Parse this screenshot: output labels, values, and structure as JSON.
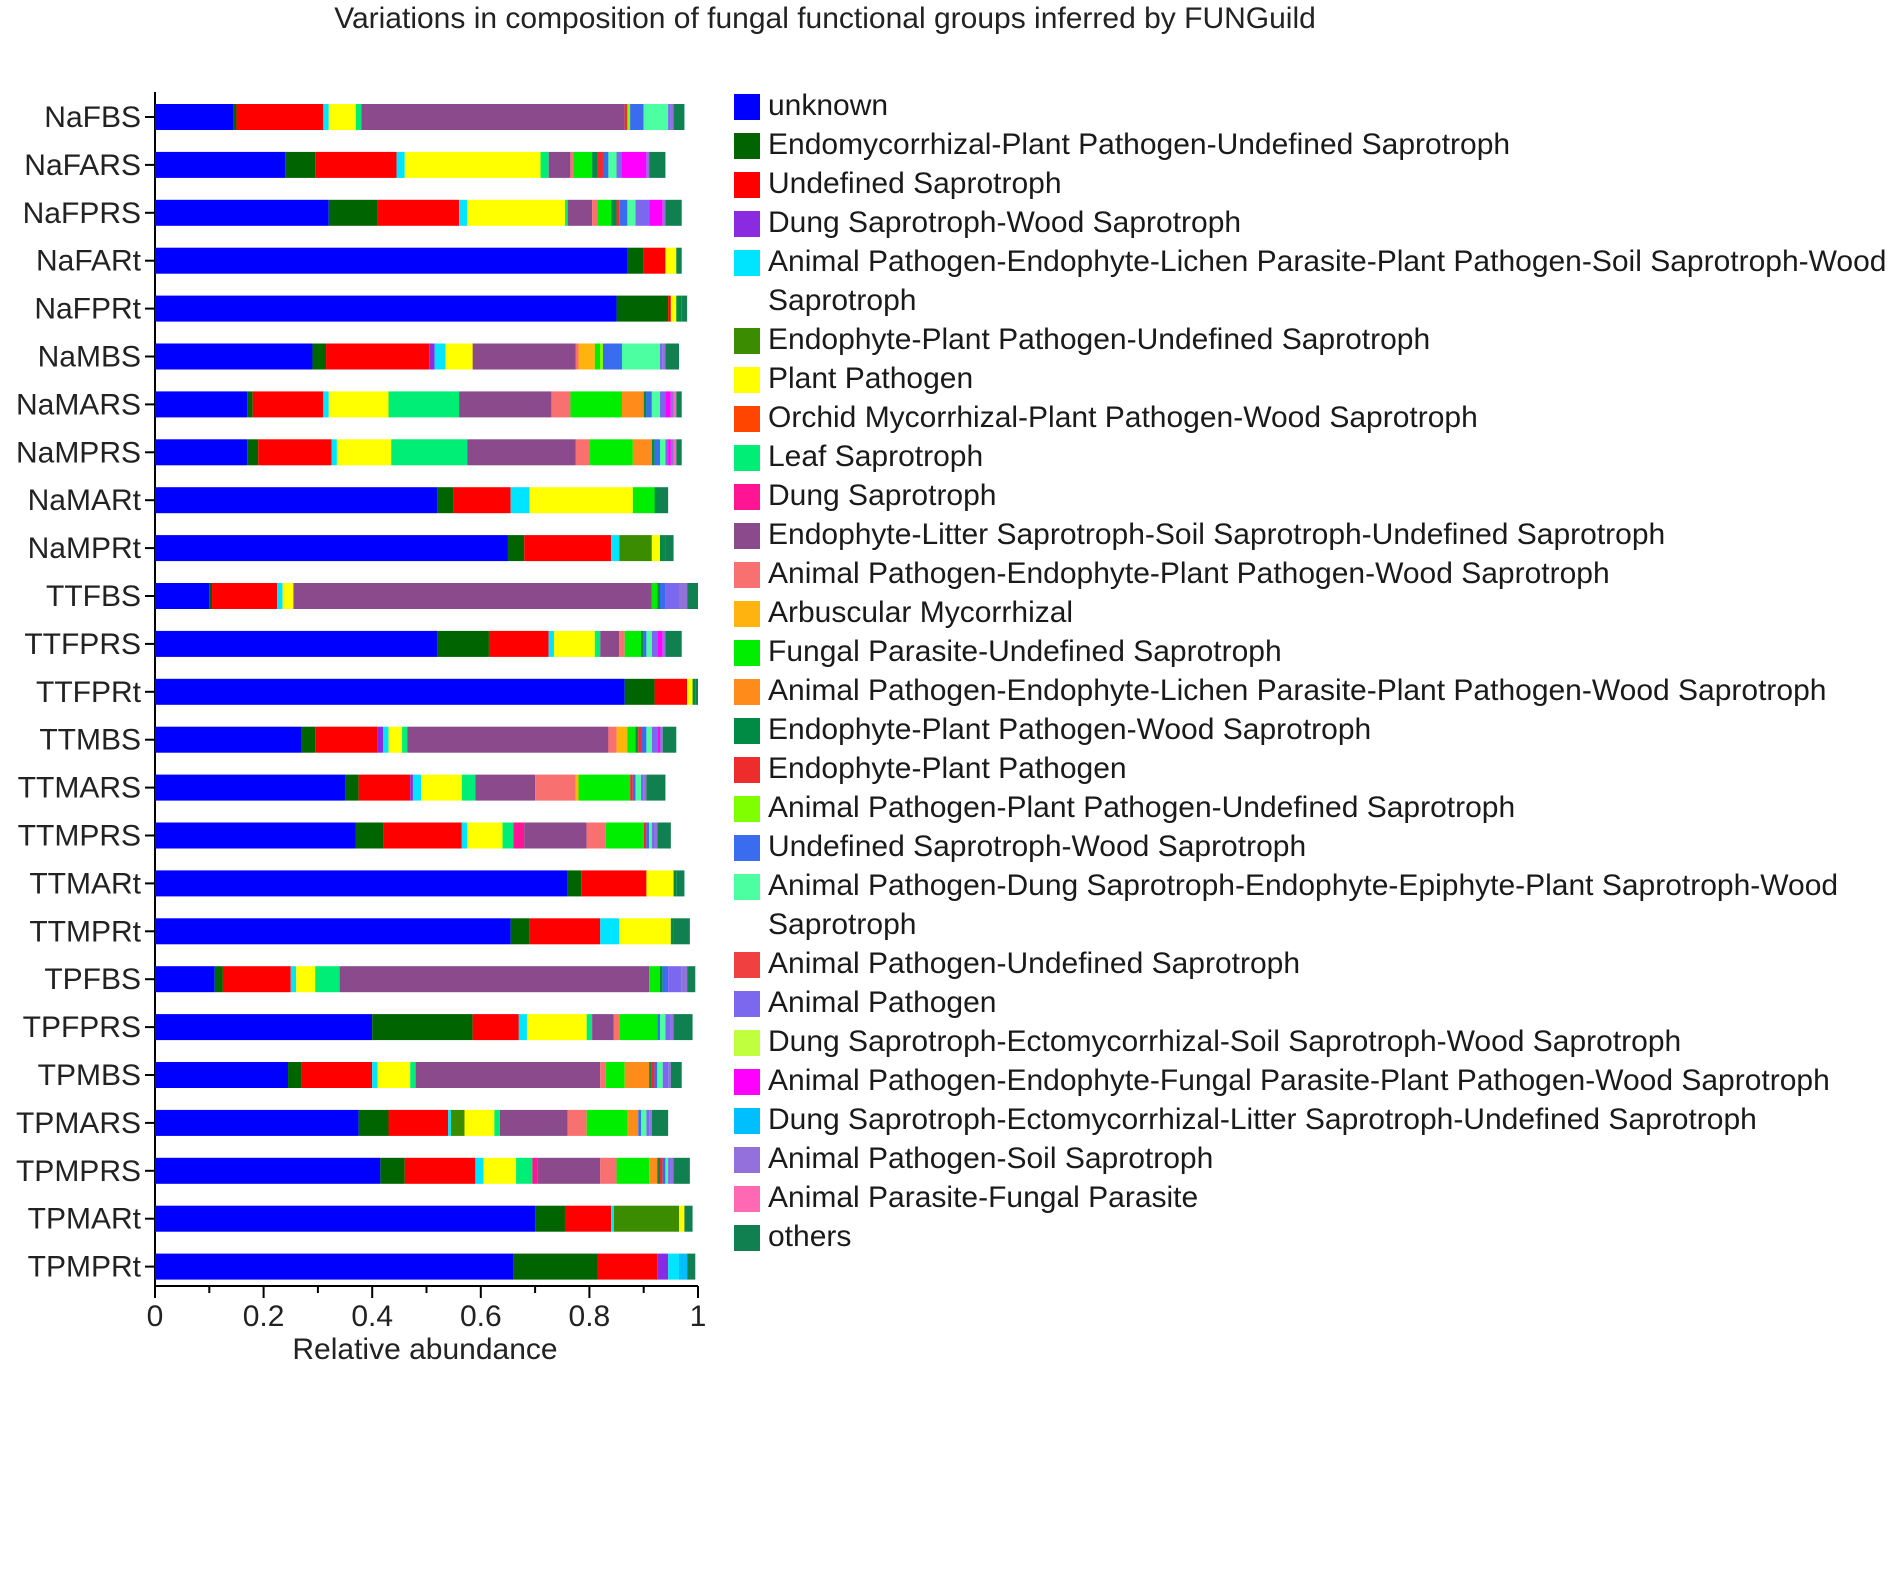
{
  "chart_data": {
    "type": "bar",
    "orientation": "horizontal",
    "stacked": true,
    "title": "Variations in composition of fungal functional groups inferred by FUNGuild",
    "xlabel": "Relative abundance",
    "ylabel": "",
    "xlim": [
      0,
      1
    ],
    "xticks": [
      "0",
      "0.2",
      "0.4",
      "0.6",
      "0.8",
      "1"
    ],
    "legend_position": "right",
    "categories": [
      "NaFBS",
      "NaFARS",
      "NaFPRS",
      "NaFARt",
      "NaFPRt",
      "NaMBS",
      "NaMARS",
      "NaMPRS",
      "NaMARt",
      "NaMPRt",
      "TTFBS",
      "TTFPRS",
      "TTFPRt",
      "TTMBS",
      "TTMARS",
      "TTMPRS",
      "TTMARt",
      "TTMPRt",
      "TPFBS",
      "TPFPRS",
      "TPMBS",
      "TPMARS",
      "TPMPRS",
      "TPMARt",
      "TPMPRt"
    ],
    "series": [
      {
        "name": "unknown",
        "color": "#0000FF",
        "values": [
          0.145,
          0.24,
          0.32,
          0.87,
          0.85,
          0.29,
          0.17,
          0.17,
          0.52,
          0.65,
          0.1,
          0.52,
          0.865,
          0.27,
          0.35,
          0.37,
          0.76,
          0.655,
          0.11,
          0.4,
          0.245,
          0.375,
          0.415,
          0.7,
          0.66
        ]
      },
      {
        "name": "Endomycorrhizal-Plant Pathogen-Undefined Saprotroph",
        "color": "#006400",
        "values": [
          0.005,
          0.055,
          0.09,
          0.03,
          0.095,
          0.025,
          0.01,
          0.02,
          0.03,
          0.03,
          0.005,
          0.095,
          0.055,
          0.025,
          0.025,
          0.05,
          0.025,
          0.035,
          0.015,
          0.185,
          0.025,
          0.055,
          0.045,
          0.055,
          0.155
        ]
      },
      {
        "name": "Undefined Saprotroph",
        "color": "#FF0000",
        "values": [
          0.16,
          0.15,
          0.15,
          0.04,
          0.005,
          0.19,
          0.13,
          0.135,
          0.105,
          0.16,
          0.12,
          0.11,
          0.06,
          0.115,
          0.095,
          0.145,
          0.12,
          0.13,
          0.125,
          0.085,
          0.13,
          0.11,
          0.13,
          0.085,
          0.11
        ]
      },
      {
        "name": "Dung Saprotroph-Wood Saprotroph",
        "color": "#8A2BE2",
        "values": [
          0,
          0,
          0,
          0,
          0,
          0.01,
          0,
          0,
          0,
          0,
          0,
          0,
          0,
          0.01,
          0.005,
          0,
          0,
          0,
          0,
          0,
          0,
          0,
          0,
          0,
          0.02
        ]
      },
      {
        "name": "Animal Pathogen-Endophyte-Lichen Parasite-Plant Pathogen-Soil Saprotroph-Wood Saprotroph",
        "color": "#00E5FF",
        "values": [
          0.01,
          0.015,
          0.015,
          0,
          0,
          0.02,
          0.01,
          0.01,
          0.035,
          0.015,
          0.01,
          0.01,
          0,
          0.01,
          0.015,
          0.01,
          0,
          0.035,
          0.01,
          0.015,
          0.01,
          0.005,
          0.015,
          0.005,
          0.02
        ]
      },
      {
        "name": "Endophyte-Plant Pathogen-Undefined Saprotroph",
        "color": "#3C8C00",
        "values": [
          0,
          0,
          0,
          0,
          0,
          0,
          0,
          0,
          0,
          0.06,
          0,
          0,
          0,
          0,
          0,
          0,
          0,
          0,
          0,
          0,
          0,
          0.025,
          0,
          0.12,
          0
        ]
      },
      {
        "name": "Plant Pathogen",
        "color": "#FFFF00",
        "values": [
          0.05,
          0.25,
          0.18,
          0.02,
          0.01,
          0.05,
          0.11,
          0.1,
          0.19,
          0.015,
          0.02,
          0.075,
          0.01,
          0.025,
          0.075,
          0.065,
          0.05,
          0.095,
          0.035,
          0.11,
          0.06,
          0.055,
          0.06,
          0.01,
          0
        ]
      },
      {
        "name": "Orchid Mycorrhizal-Plant Pathogen-Wood Saprotroph",
        "color": "#FF4500",
        "values": [
          0,
          0,
          0,
          0,
          0,
          0,
          0,
          0,
          0,
          0,
          0,
          0,
          0,
          0,
          0,
          0,
          0,
          0,
          0,
          0,
          0,
          0,
          0,
          0,
          0
        ]
      },
      {
        "name": "Leaf Saprotroph",
        "color": "#00EE76",
        "values": [
          0.01,
          0.015,
          0.005,
          0,
          0,
          0,
          0.13,
          0.14,
          0,
          0,
          0,
          0.01,
          0,
          0.01,
          0.025,
          0.02,
          0,
          0,
          0.045,
          0.01,
          0.01,
          0.01,
          0.03,
          0,
          0
        ]
      },
      {
        "name": "Dung Saprotroph",
        "color": "#FF1493",
        "values": [
          0,
          0,
          0,
          0,
          0,
          0,
          0,
          0,
          0,
          0,
          0,
          0,
          0,
          0,
          0,
          0.02,
          0,
          0,
          0,
          0,
          0,
          0,
          0.01,
          0,
          0
        ]
      },
      {
        "name": "Endophyte-Litter Saprotroph-Soil Saprotroph-Undefined Saprotroph",
        "color": "#8B4A8B",
        "values": [
          0.485,
          0.04,
          0.045,
          0,
          0,
          0.19,
          0.17,
          0.2,
          0,
          0,
          0.66,
          0.035,
          0,
          0.37,
          0.11,
          0.115,
          0,
          0,
          0.57,
          0.04,
          0.34,
          0.125,
          0.115,
          0,
          0
        ]
      },
      {
        "name": "Animal Pathogen-Endophyte-Plant Pathogen-Wood Saprotroph",
        "color": "#F87070",
        "values": [
          0,
          0.005,
          0.01,
          0,
          0,
          0.005,
          0.035,
          0.025,
          0,
          0,
          0,
          0.01,
          0,
          0.015,
          0.075,
          0.035,
          0,
          0,
          0,
          0.01,
          0.01,
          0.035,
          0.03,
          0,
          0
        ]
      },
      {
        "name": "Arbuscular Mycorrhizal",
        "color": "#FFB30F",
        "values": [
          0,
          0,
          0,
          0,
          0,
          0.03,
          0,
          0,
          0,
          0,
          0,
          0,
          0,
          0.02,
          0.005,
          0,
          0,
          0,
          0,
          0,
          0,
          0,
          0,
          0,
          0
        ]
      },
      {
        "name": "Fungal Parasite-Undefined Saprotroph",
        "color": "#00EE00",
        "values": [
          0,
          0.035,
          0.025,
          0,
          0,
          0.01,
          0.095,
          0.08,
          0.04,
          0,
          0.01,
          0.03,
          0,
          0.015,
          0.095,
          0.07,
          0,
          0,
          0.02,
          0.07,
          0.035,
          0.075,
          0.06,
          0,
          0
        ]
      },
      {
        "name": "Animal Pathogen-Endophyte-Lichen Parasite-Plant Pathogen-Wood Saprotroph",
        "color": "#FF8C1A",
        "values": [
          0,
          0,
          0,
          0,
          0,
          0,
          0.04,
          0.035,
          0,
          0,
          0,
          0,
          0,
          0,
          0,
          0,
          0,
          0,
          0,
          0,
          0.045,
          0.02,
          0.015,
          0,
          0
        ]
      },
      {
        "name": "Endophyte-Plant Pathogen-Wood Saprotroph",
        "color": "#008B45",
        "values": [
          0,
          0.01,
          0.01,
          0,
          0.01,
          0,
          0.005,
          0.005,
          0.01,
          0.01,
          0.005,
          0.005,
          0.005,
          0.005,
          0,
          0,
          0.005,
          0.005,
          0.005,
          0,
          0.005,
          0,
          0.005,
          0,
          0
        ]
      },
      {
        "name": "Endophyte-Plant Pathogen",
        "color": "#EE2C2C",
        "values": [
          0.005,
          0.01,
          0.005,
          0,
          0,
          0,
          0,
          0,
          0,
          0,
          0,
          0,
          0,
          0.005,
          0.005,
          0.005,
          0,
          0,
          0,
          0,
          0.005,
          0,
          0.005,
          0,
          0
        ]
      },
      {
        "name": "Animal Pathogen-Plant Pathogen-Undefined Saprotroph",
        "color": "#7FFF00",
        "values": [
          0.005,
          0,
          0,
          0,
          0,
          0.005,
          0,
          0,
          0,
          0,
          0,
          0,
          0,
          0,
          0,
          0,
          0,
          0,
          0,
          0,
          0,
          0,
          0,
          0,
          0
        ]
      },
      {
        "name": "Undefined Saprotroph-Wood Saprotroph",
        "color": "#3A6CF0",
        "values": [
          0.025,
          0.01,
          0.015,
          0,
          0,
          0.035,
          0.01,
          0.01,
          0,
          0,
          0.01,
          0.005,
          0,
          0.01,
          0.005,
          0.005,
          0,
          0,
          0.01,
          0.005,
          0.005,
          0.005,
          0.005,
          0,
          0
        ]
      },
      {
        "name": "Animal Pathogen-Dung Saprotroph-Endophyte-Epiphyte-Plant Saprotroph-Wood Saprotroph",
        "color": "#4CFFA0",
        "values": [
          0.045,
          0.015,
          0.015,
          0,
          0,
          0.07,
          0.015,
          0.01,
          0,
          0,
          0,
          0.01,
          0,
          0.01,
          0.01,
          0.005,
          0,
          0,
          0,
          0.01,
          0.01,
          0.01,
          0.005,
          0,
          0
        ]
      },
      {
        "name": "Animal Pathogen-Undefined Saprotroph",
        "color": "#F04040",
        "values": [
          0,
          0,
          0,
          0,
          0,
          0,
          0,
          0,
          0,
          0,
          0,
          0,
          0,
          0,
          0,
          0,
          0,
          0,
          0,
          0,
          0,
          0,
          0,
          0,
          0
        ]
      },
      {
        "name": "Animal Pathogen",
        "color": "#7B68EE",
        "values": [
          0.005,
          0.01,
          0.025,
          0,
          0,
          0.005,
          0.01,
          0.005,
          0,
          0,
          0.025,
          0.01,
          0,
          0.01,
          0.005,
          0.005,
          0,
          0,
          0.025,
          0.01,
          0.01,
          0.005,
          0.005,
          0,
          0
        ]
      },
      {
        "name": "Dung Saprotroph-Ectomycorrhizal-Soil Saprotroph-Wood Saprotroph",
        "color": "#C0FF3E",
        "values": [
          0,
          0,
          0,
          0,
          0,
          0,
          0,
          0,
          0,
          0,
          0,
          0,
          0,
          0,
          0,
          0,
          0,
          0,
          0,
          0,
          0,
          0,
          0,
          0,
          0
        ]
      },
      {
        "name": "Animal Pathogen-Endophyte-Fungal Parasite-Plant Pathogen-Wood Saprotroph",
        "color": "#FF00FF",
        "values": [
          0,
          0.045,
          0.025,
          0,
          0,
          0,
          0.01,
          0.005,
          0,
          0,
          0,
          0.01,
          0,
          0.005,
          0,
          0,
          0,
          0,
          0,
          0,
          0,
          0,
          0,
          0,
          0
        ]
      },
      {
        "name": "Dung Saprotroph-Ectomycorrhizal-Litter Saprotroph-Undefined Saprotroph",
        "color": "#00BFFF",
        "values": [
          0,
          0,
          0,
          0,
          0,
          0,
          0,
          0,
          0,
          0,
          0,
          0,
          0,
          0,
          0,
          0,
          0,
          0,
          0,
          0,
          0,
          0,
          0,
          0,
          0.015
        ]
      },
      {
        "name": "Animal Pathogen-Soil Saprotroph",
        "color": "#9370DB",
        "values": [
          0.005,
          0.005,
          0.005,
          0,
          0,
          0.005,
          0.005,
          0.005,
          0,
          0,
          0.015,
          0.005,
          0,
          0.005,
          0.005,
          0.005,
          0,
          0,
          0.01,
          0.005,
          0.005,
          0.005,
          0.005,
          0,
          0
        ]
      },
      {
        "name": "Animal Parasite-Fungal Parasite",
        "color": "#FF69B4",
        "values": [
          0,
          0,
          0,
          0,
          0,
          0,
          0.005,
          0.005,
          0,
          0,
          0,
          0,
          0,
          0,
          0,
          0,
          0,
          0,
          0,
          0,
          0,
          0,
          0,
          0,
          0
        ]
      },
      {
        "name": "others",
        "color": "#108050",
        "values": [
          0.02,
          0.03,
          0.03,
          0.01,
          0.01,
          0.025,
          0.01,
          0.01,
          0.015,
          0.015,
          0.025,
          0.03,
          0.005,
          0.025,
          0.035,
          0.025,
          0.015,
          0.03,
          0.015,
          0.035,
          0.02,
          0.03,
          0.03,
          0.015,
          0.015
        ]
      }
    ]
  }
}
